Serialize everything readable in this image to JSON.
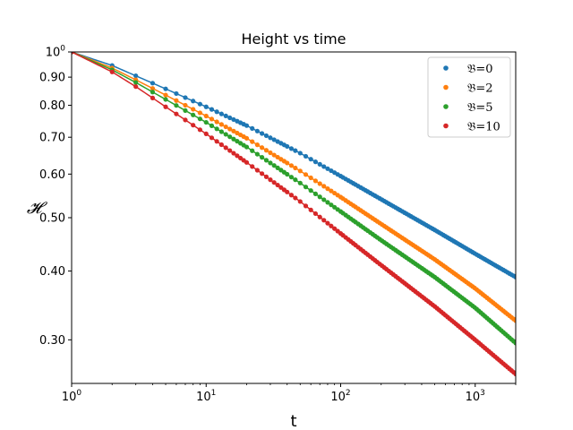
{
  "chart_data": {
    "type": "scatter",
    "title": "Height vs time",
    "xlabel": "t",
    "ylabel": "𝓗",
    "xscale": "log",
    "yscale": "log",
    "xlim": [
      1,
      2000
    ],
    "ylim": [
      0.25,
      1.0
    ],
    "x_ticks": [
      {
        "value": 1,
        "base": "10",
        "exp": "0"
      },
      {
        "value": 10,
        "base": "10",
        "exp": "1"
      },
      {
        "value": 100,
        "base": "10",
        "exp": "2"
      },
      {
        "value": 1000,
        "base": "10",
        "exp": "3"
      }
    ],
    "y_ticks": [
      {
        "value": 1.0,
        "base": "10",
        "exp": "0"
      },
      {
        "value": 0.9,
        "label": "0.90"
      },
      {
        "value": 0.8,
        "label": "0.80"
      },
      {
        "value": 0.7,
        "label": "0.70"
      },
      {
        "value": 0.6,
        "label": "0.60"
      },
      {
        "value": 0.5,
        "label": "0.50"
      },
      {
        "value": 0.4,
        "label": "0.40"
      },
      {
        "value": 0.3,
        "label": "0.30"
      }
    ],
    "legend_position": "top-right",
    "series": [
      {
        "name": "𝔅=0",
        "color": "#1f77b4",
        "points": [
          [
            1,
            1.0
          ],
          [
            2,
            0.945
          ],
          [
            3,
            0.905
          ],
          [
            5,
            0.857
          ],
          [
            10,
            0.795
          ],
          [
            20,
            0.735
          ],
          [
            50,
            0.655
          ],
          [
            100,
            0.595
          ],
          [
            200,
            0.54
          ],
          [
            500,
            0.475
          ],
          [
            1000,
            0.43
          ],
          [
            2000,
            0.39
          ]
        ]
      },
      {
        "name": "𝔅=2",
        "color": "#ff7f0e",
        "points": [
          [
            1,
            1.0
          ],
          [
            2,
            0.935
          ],
          [
            3,
            0.89
          ],
          [
            5,
            0.835
          ],
          [
            10,
            0.765
          ],
          [
            20,
            0.697
          ],
          [
            50,
            0.608
          ],
          [
            100,
            0.545
          ],
          [
            200,
            0.487
          ],
          [
            500,
            0.42
          ],
          [
            1000,
            0.372
          ],
          [
            2000,
            0.325
          ]
        ]
      },
      {
        "name": "𝔅=5",
        "color": "#2ca02c",
        "points": [
          [
            1,
            1.0
          ],
          [
            2,
            0.928
          ],
          [
            3,
            0.88
          ],
          [
            5,
            0.82
          ],
          [
            10,
            0.745
          ],
          [
            20,
            0.672
          ],
          [
            50,
            0.578
          ],
          [
            100,
            0.513
          ],
          [
            200,
            0.455
          ],
          [
            500,
            0.39
          ],
          [
            1000,
            0.343
          ],
          [
            2000,
            0.296
          ]
        ]
      },
      {
        "name": "𝔅=10",
        "color": "#d62728",
        "points": [
          [
            1,
            1.0
          ],
          [
            2,
            0.92
          ],
          [
            3,
            0.865
          ],
          [
            5,
            0.795
          ],
          [
            10,
            0.71
          ],
          [
            20,
            0.63
          ],
          [
            50,
            0.535
          ],
          [
            100,
            0.468
          ],
          [
            200,
            0.41
          ],
          [
            500,
            0.345
          ],
          [
            1000,
            0.3
          ],
          [
            2000,
            0.26
          ]
        ]
      }
    ]
  }
}
